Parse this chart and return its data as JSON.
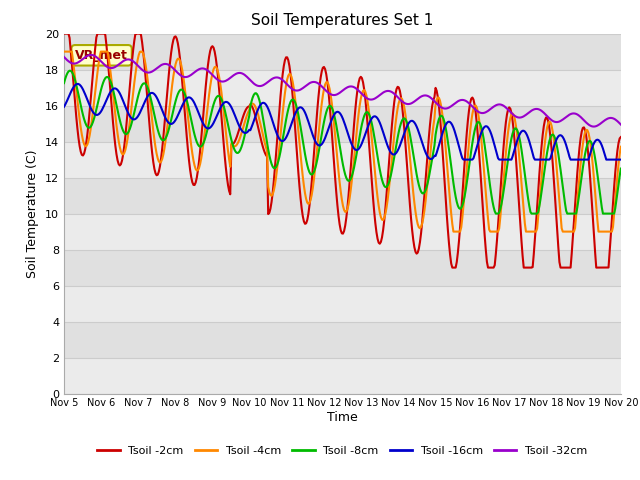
{
  "title": "Soil Temperatures Set 1",
  "xlabel": "Time",
  "ylabel": "Soil Temperature (C)",
  "xlim": [
    0,
    15
  ],
  "ylim": [
    0,
    20
  ],
  "yticks": [
    0,
    2,
    4,
    6,
    8,
    10,
    12,
    14,
    16,
    18,
    20
  ],
  "xtick_labels": [
    "Nov 5",
    "Nov 6",
    "Nov 7",
    "Nov 8",
    "Nov 9",
    "Nov 10",
    "Nov 11",
    "Nov 12",
    "Nov 13",
    "Nov 14",
    "Nov 15",
    "Nov 16",
    "Nov 17",
    "Nov 18",
    "Nov 19",
    "Nov 20"
  ],
  "bg_color_light": "#ebebeb",
  "bg_color_dark": "#e0e0e0",
  "annotation_text": "VR_met",
  "series": {
    "Tsoil -2cm": {
      "color": "#cc0000"
    },
    "Tsoil -4cm": {
      "color": "#ff8800"
    },
    "Tsoil -8cm": {
      "color": "#00bb00"
    },
    "Tsoil -16cm": {
      "color": "#0000cc"
    },
    "Tsoil -32cm": {
      "color": "#9900cc"
    }
  }
}
